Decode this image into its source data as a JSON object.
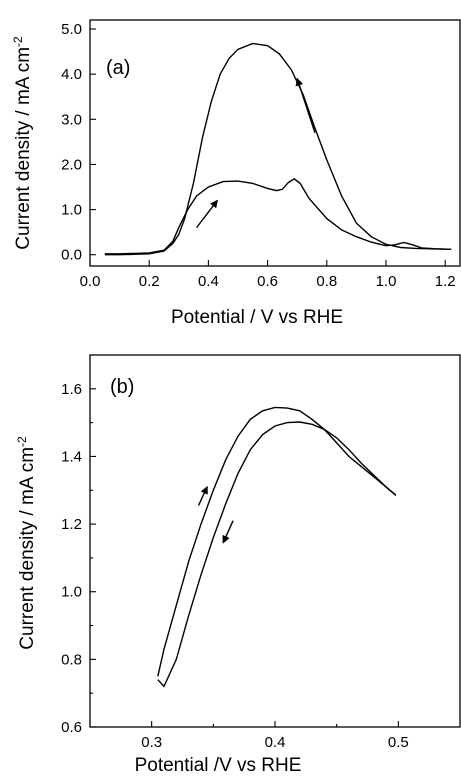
{
  "chart_data": [
    {
      "type": "line",
      "panel_label": "(a)",
      "xlabel": "Potential / V  vs RHE",
      "ylabel": "Current density / mA cm",
      "ylabel_superscript": "-2",
      "xlim": [
        0.0,
        1.25
      ],
      "ylim": [
        -0.25,
        5.2
      ],
      "x_ticks": [
        0.0,
        0.2,
        0.4,
        0.6,
        0.8,
        1.0,
        1.2
      ],
      "x_tick_labels": [
        "0.0",
        "0.2",
        "0.4",
        "0.6",
        "0.8",
        "1.0",
        "1.2"
      ],
      "y_ticks": [
        0.0,
        1.0,
        2.0,
        3.0,
        4.0,
        5.0
      ],
      "y_tick_labels": [
        "0.0",
        "1.0",
        "2.0",
        "3.0",
        "4.0",
        "5.0"
      ],
      "series": [
        {
          "values": [
            [
              0.05,
              0.02
            ],
            [
              0.1,
              0.02
            ],
            [
              0.15,
              0.03
            ],
            [
              0.2,
              0.04
            ],
            [
              0.25,
              0.1
            ],
            [
              0.28,
              0.3
            ],
            [
              0.3,
              0.6
            ],
            [
              0.33,
              1.0
            ],
            [
              0.36,
              1.3
            ],
            [
              0.4,
              1.5
            ],
            [
              0.45,
              1.62
            ],
            [
              0.5,
              1.63
            ],
            [
              0.55,
              1.58
            ],
            [
              0.6,
              1.47
            ],
            [
              0.63,
              1.42
            ],
            [
              0.65,
              1.45
            ],
            [
              0.67,
              1.6
            ],
            [
              0.69,
              1.68
            ],
            [
              0.71,
              1.58
            ],
            [
              0.74,
              1.25
            ],
            [
              0.8,
              0.8
            ],
            [
              0.85,
              0.55
            ],
            [
              0.9,
              0.4
            ],
            [
              0.95,
              0.28
            ],
            [
              1.0,
              0.2
            ],
            [
              1.03,
              0.22
            ],
            [
              1.06,
              0.27
            ],
            [
              1.09,
              0.22
            ],
            [
              1.12,
              0.15
            ],
            [
              1.17,
              0.13
            ],
            [
              1.22,
              0.12
            ]
          ]
        },
        {
          "values": [
            [
              1.22,
              0.12
            ],
            [
              1.15,
              0.13
            ],
            [
              1.1,
              0.14
            ],
            [
              1.05,
              0.16
            ],
            [
              1.0,
              0.23
            ],
            [
              0.95,
              0.4
            ],
            [
              0.9,
              0.7
            ],
            [
              0.85,
              1.3
            ],
            [
              0.8,
              2.1
            ],
            [
              0.76,
              2.8
            ],
            [
              0.72,
              3.55
            ],
            [
              0.68,
              4.1
            ],
            [
              0.64,
              4.45
            ],
            [
              0.6,
              4.63
            ],
            [
              0.55,
              4.68
            ],
            [
              0.5,
              4.55
            ],
            [
              0.47,
              4.35
            ],
            [
              0.44,
              4.0
            ],
            [
              0.41,
              3.4
            ],
            [
              0.38,
              2.6
            ],
            [
              0.35,
              1.6
            ],
            [
              0.32,
              0.8
            ],
            [
              0.3,
              0.45
            ],
            [
              0.28,
              0.25
            ],
            [
              0.25,
              0.08
            ],
            [
              0.2,
              0.02
            ],
            [
              0.15,
              0.01
            ],
            [
              0.1,
              0.0
            ],
            [
              0.05,
              0.0
            ]
          ]
        }
      ],
      "arrows": [
        {
          "from": [
            0.76,
            2.7
          ],
          "to": [
            0.7,
            3.9
          ]
        },
        {
          "from": [
            0.36,
            0.6
          ],
          "to": [
            0.43,
            1.2
          ]
        }
      ]
    },
    {
      "type": "line",
      "panel_label": "(b)",
      "xlabel": "Potential /V vs RHE",
      "ylabel": "Current density / mA cm",
      "ylabel_superscript": "-2",
      "xlim": [
        0.25,
        0.55
      ],
      "ylim": [
        0.6,
        1.7
      ],
      "x_ticks": [
        0.3,
        0.4,
        0.5
      ],
      "x_tick_labels": [
        "0.3",
        "0.4",
        "0.5"
      ],
      "x_minor_ticks": [
        0.35,
        0.45
      ],
      "y_ticks": [
        0.6,
        0.8,
        1.0,
        1.2,
        1.4,
        1.6
      ],
      "y_tick_labels": [
        "0.6",
        "0.8",
        "1.0",
        "1.2",
        "1.4",
        "1.6"
      ],
      "y_minor_ticks": [
        0.7,
        0.9,
        1.1,
        1.3,
        1.5
      ],
      "series": [
        {
          "values": [
            [
              0.305,
              0.75
            ],
            [
              0.31,
              0.83
            ],
            [
              0.32,
              0.96
            ],
            [
              0.33,
              1.09
            ],
            [
              0.34,
              1.2
            ],
            [
              0.35,
              1.3
            ],
            [
              0.36,
              1.39
            ],
            [
              0.37,
              1.46
            ],
            [
              0.38,
              1.51
            ],
            [
              0.39,
              1.535
            ],
            [
              0.4,
              1.545
            ],
            [
              0.41,
              1.543
            ],
            [
              0.42,
              1.535
            ],
            [
              0.43,
              1.51
            ],
            [
              0.44,
              1.48
            ],
            [
              0.45,
              1.44
            ],
            [
              0.46,
              1.4
            ],
            [
              0.47,
              1.37
            ],
            [
              0.48,
              1.34
            ],
            [
              0.49,
              1.31
            ],
            [
              0.498,
              1.285
            ]
          ]
        },
        {
          "values": [
            [
              0.498,
              1.285
            ],
            [
              0.49,
              1.31
            ],
            [
              0.48,
              1.345
            ],
            [
              0.47,
              1.38
            ],
            [
              0.46,
              1.42
            ],
            [
              0.45,
              1.455
            ],
            [
              0.44,
              1.48
            ],
            [
              0.43,
              1.495
            ],
            [
              0.42,
              1.502
            ],
            [
              0.41,
              1.5
            ],
            [
              0.4,
              1.49
            ],
            [
              0.39,
              1.465
            ],
            [
              0.38,
              1.42
            ],
            [
              0.37,
              1.35
            ],
            [
              0.36,
              1.26
            ],
            [
              0.35,
              1.16
            ],
            [
              0.34,
              1.05
            ],
            [
              0.33,
              0.93
            ],
            [
              0.32,
              0.8
            ],
            [
              0.31,
              0.72
            ],
            [
              0.305,
              0.74
            ]
          ]
        }
      ],
      "arrows": [
        {
          "from": [
            0.338,
            1.255
          ],
          "to": [
            0.345,
            1.31
          ]
        },
        {
          "from": [
            0.366,
            1.21
          ],
          "to": [
            0.358,
            1.145
          ]
        }
      ]
    }
  ]
}
